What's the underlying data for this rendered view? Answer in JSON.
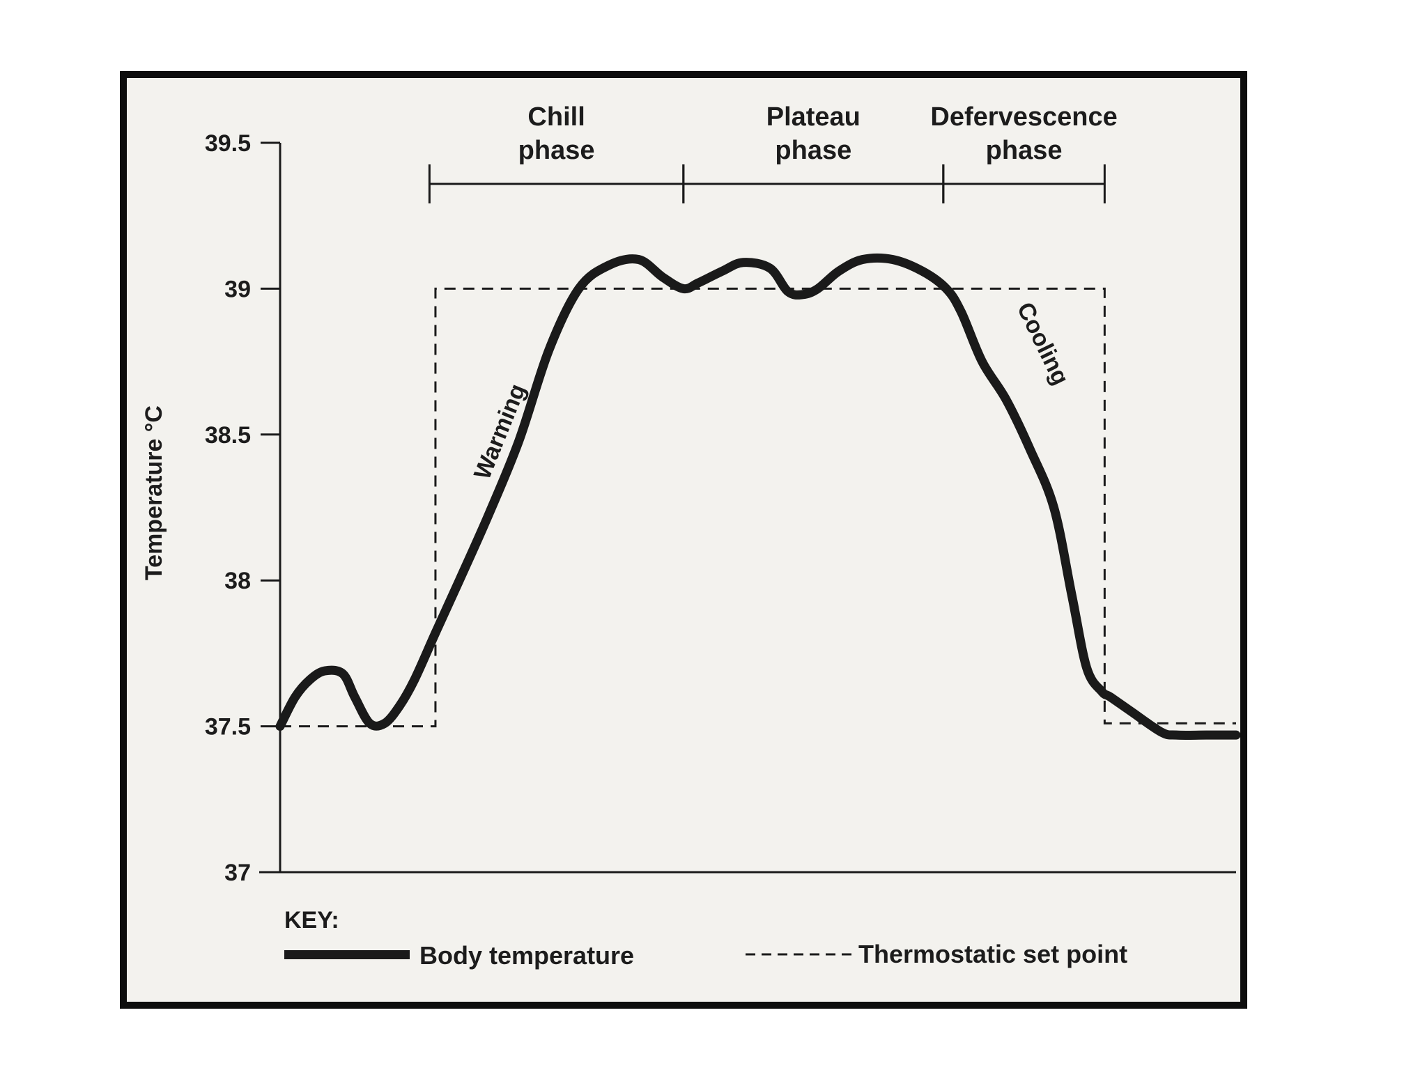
{
  "chart_data": {
    "type": "line",
    "ylabel": "Temperature °C",
    "ylim": [
      37,
      39.5
    ],
    "yticks": [
      "37",
      "37.5",
      "38",
      "38.5",
      "39",
      "39.5"
    ],
    "grid": false,
    "phases": [
      {
        "label_line1": "Chill",
        "label_line2": "phase",
        "x_start": 5.0,
        "x_end": 13.5
      },
      {
        "label_line1": "Plateau",
        "label_line2": "phase",
        "x_start": 13.5,
        "x_end": 22.2
      },
      {
        "label_line1": "Defervescence",
        "label_line2": "phase",
        "x_start": 22.2,
        "x_end": 27.6
      }
    ],
    "annotations": [
      {
        "text": "Warming",
        "x": 7.6,
        "y": 38.5
      },
      {
        "text": "Cooling",
        "x": 25.3,
        "y": 38.8
      }
    ],
    "series": [
      {
        "name": "Body temperature",
        "style": "solid",
        "color": "#1a1a1a",
        "x": [
          0.0,
          0.5,
          1.0,
          1.5,
          2.1,
          2.5,
          3.0,
          3.5,
          4.0,
          4.5,
          5.2,
          6.0,
          7.0,
          8.0,
          9.0,
          10.0,
          11.0,
          12.0,
          12.8,
          13.5,
          14.0,
          14.8,
          15.5,
          16.4,
          17.0,
          17.5,
          18.0,
          18.7,
          19.5,
          20.5,
          21.5,
          22.3,
          22.8,
          23.5,
          24.3,
          25.1,
          25.9,
          26.5,
          27.0,
          27.5,
          27.8,
          28.5,
          29.5,
          30.0,
          31.0,
          32.0
        ],
        "y": [
          37.5,
          37.6,
          37.66,
          37.69,
          37.68,
          37.6,
          37.51,
          37.51,
          37.57,
          37.66,
          37.82,
          38.0,
          38.23,
          38.48,
          38.79,
          39.0,
          39.08,
          39.1,
          39.04,
          39.0,
          39.02,
          39.06,
          39.09,
          39.07,
          38.99,
          38.98,
          39.0,
          39.06,
          39.1,
          39.1,
          39.06,
          39.0,
          38.92,
          38.75,
          38.62,
          38.45,
          38.25,
          37.95,
          37.7,
          37.62,
          37.6,
          37.55,
          37.48,
          37.47,
          37.47,
          37.47
        ]
      },
      {
        "name": "Thermostatic set point",
        "style": "dashed",
        "color": "#1a1a1a",
        "x": [
          0.0,
          5.2,
          5.2,
          27.6,
          27.6,
          32.0
        ],
        "y": [
          37.5,
          37.5,
          39.0,
          39.0,
          37.51,
          37.51
        ]
      }
    ],
    "legend": {
      "title": "KEY:",
      "placement": "bottom",
      "body_label": "Body temperature",
      "setpoint_label": "Thermostatic set point"
    }
  }
}
